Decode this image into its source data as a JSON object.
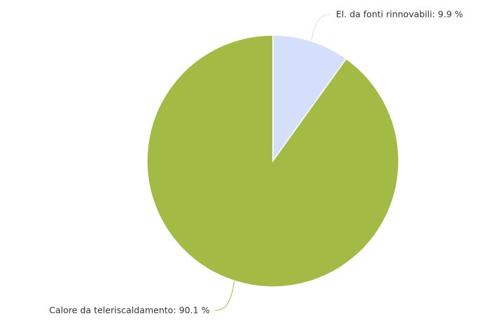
{
  "chart_data": {
    "type": "pie",
    "categories": [
      "El. da fonti rinnovabili",
      "Calore da teleriscaldamento"
    ],
    "values": [
      9.9,
      90.1
    ],
    "value_labels": [
      "9.9 %",
      "90.1 %"
    ],
    "colors": [
      "#d4dffc",
      "#a3bb45"
    ]
  }
}
